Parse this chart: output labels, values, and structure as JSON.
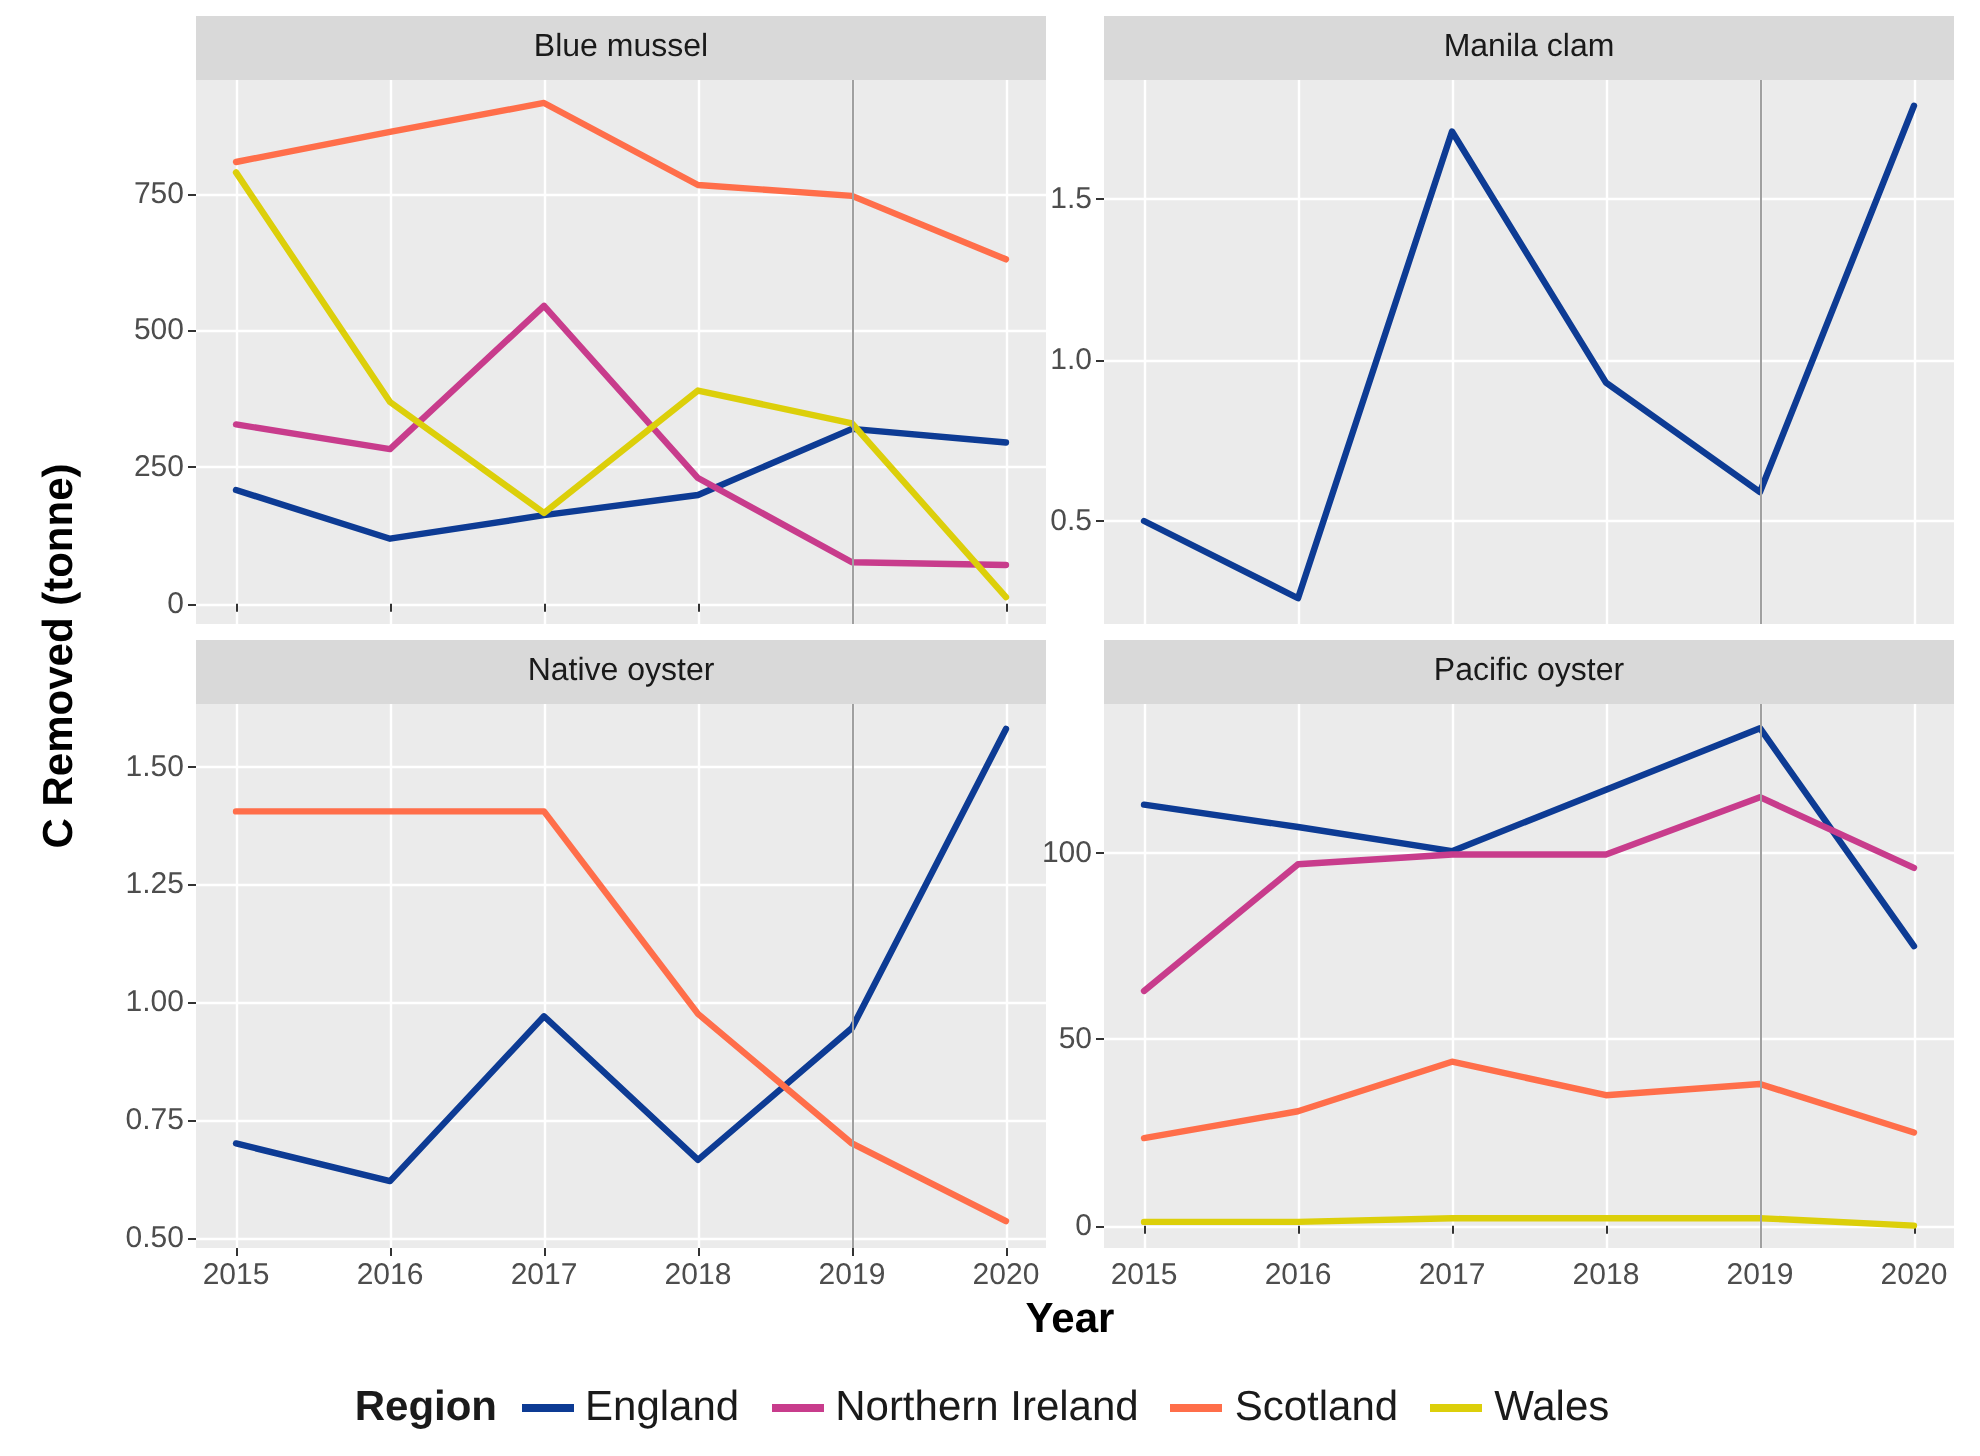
{
  "chart_data": [
    {
      "type": "line",
      "title": "Blue mussel",
      "xlabel": "Year",
      "ylabel": "C Removed (tonne)",
      "legend_title": "Region",
      "legend": "bottom",
      "grid": true,
      "marker": "none",
      "line_style": "solid",
      "tick_labels": "y",
      "x": [
        2015,
        2016,
        2017,
        2018,
        2019,
        2020
      ],
      "xlim": [
        2014.74,
        2020.26
      ],
      "xticks": [
        2015,
        2016,
        2017,
        2018,
        2019,
        2020
      ],
      "ylim": [
        -37,
        958
      ],
      "yticks": [
        0,
        250,
        500,
        750
      ],
      "ref_lines": [
        {
          "axis": "x",
          "value": 2019,
          "color": "#a0a0a0"
        }
      ],
      "series": [
        {
          "name": "England",
          "color": "#0d3b94",
          "values": [
            208,
            119,
            162,
            199,
            320,
            295
          ]
        },
        {
          "name": "Northern Ireland",
          "color": "#c83c8c",
          "values": [
            328,
            283,
            545,
            230,
            76,
            71
          ]
        },
        {
          "name": "Scotland",
          "color": "#ff6e4a",
          "values": [
            808,
            863,
            916,
            766,
            746,
            630
          ]
        },
        {
          "name": "Wales",
          "color": "#dccf0a",
          "values": [
            789,
            369,
            166,
            390,
            330,
            12
          ]
        }
      ]
    },
    {
      "type": "line",
      "title": "Manila clam",
      "grid": true,
      "marker": "none",
      "line_style": "solid",
      "tick_labels": "y",
      "x": [
        2015,
        2016,
        2017,
        2018,
        2019,
        2020
      ],
      "xlim": [
        2014.74,
        2020.26
      ],
      "xticks": [
        2015,
        2016,
        2017,
        2018,
        2019,
        2020
      ],
      "ylim": [
        0.18,
        1.87
      ],
      "yticks": [
        {
          "value": 0.5,
          "label": "0.5"
        },
        {
          "value": 1,
          "label": "1.0"
        },
        {
          "value": 1.5,
          "label": "1.5"
        }
      ],
      "ref_lines": [
        {
          "axis": "x",
          "value": 2019,
          "color": "#a0a0a0"
        }
      ],
      "series": [
        {
          "color": "#0d3b94",
          "values": [
            0.5,
            0.26,
            1.71,
            0.93,
            0.59,
            1.79
          ]
        }
      ]
    },
    {
      "type": "line",
      "title": "Native oyster",
      "grid": true,
      "marker": "none",
      "line_style": "solid",
      "x": [
        2015,
        2016,
        2017,
        2018,
        2019,
        2020
      ],
      "xlim": [
        2014.74,
        2020.26
      ],
      "xticks": [
        2015,
        2016,
        2017,
        2018,
        2019,
        2020
      ],
      "ylim": [
        0.478,
        1.633
      ],
      "yticks": [
        {
          "value": 0.5,
          "label": "0.50"
        },
        {
          "value": 0.75,
          "label": "0.75"
        },
        {
          "value": 1,
          "label": "1.00"
        },
        {
          "value": 1.25,
          "label": "1.25"
        },
        {
          "value": 1.5,
          "label": "1.50"
        }
      ],
      "ref_lines": [
        {
          "axis": "x",
          "value": 2019,
          "color": "#a0a0a0"
        }
      ],
      "series": [
        {
          "color": "#0d3b94",
          "values": [
            0.7,
            0.62,
            0.97,
            0.665,
            0.945,
            1.58
          ]
        },
        {
          "color": "#ff6e4a",
          "values": [
            1.405,
            1.405,
            1.405,
            0.975,
            0.7,
            0.535
          ]
        }
      ]
    },
    {
      "type": "line",
      "title": "Pacific oyster",
      "grid": true,
      "marker": "none",
      "line_style": "solid",
      "x": [
        2015,
        2016,
        2017,
        2018,
        2019,
        2020
      ],
      "xlim": [
        2014.74,
        2020.26
      ],
      "xticks": [
        2015,
        2016,
        2017,
        2018,
        2019,
        2020
      ],
      "ylim": [
        -6,
        140
      ],
      "yticks": [
        0,
        50,
        100
      ],
      "ref_lines": [
        {
          "axis": "x",
          "value": 2019,
          "color": "#a0a0a0"
        }
      ],
      "series": [
        {
          "color": "#0d3b94",
          "values": [
            113,
            107,
            100.5,
            117,
            133.5,
            75
          ]
        },
        {
          "color": "#c83c8c",
          "values": [
            63,
            97,
            99.6,
            99.6,
            115,
            96
          ]
        },
        {
          "color": "#ff6e4a",
          "values": [
            23.5,
            30.7,
            44,
            35,
            38,
            25
          ]
        },
        {
          "color": "#dccf0a",
          "values": [
            1,
            1,
            2,
            2,
            2,
            0
          ]
        }
      ]
    }
  ]
}
